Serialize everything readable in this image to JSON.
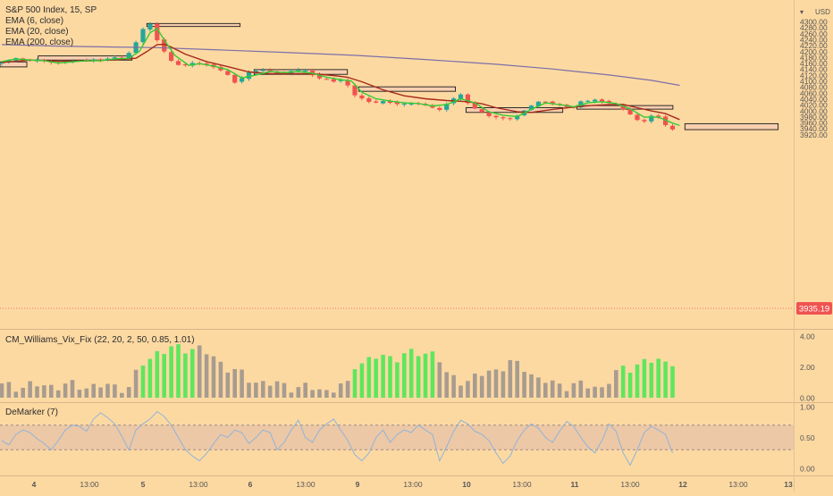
{
  "chart": {
    "title": "S&P 500 Index, 15, SP",
    "currency": "USD",
    "current_price": "3935.19",
    "ema_labels": [
      "EMA (6, close)",
      "EMA (20, close)",
      "EMA (200, close)"
    ],
    "vix_label": "CM_Williams_Vix_Fix (22, 20, 2, 50, 0.85, 1.01)",
    "demarker_label": "DeMarker (7)"
  },
  "colors": {
    "background": "#fdd9a2",
    "candle_up": "#26a69a",
    "candle_down": "#ef5350",
    "ema6": "#33cc33",
    "ema20": "#a52a1a",
    "ema200": "#7b6fa8",
    "vix_high": "#5ee65e",
    "vix_normal": "#a89c90",
    "demarker_line": "#8fb4d9",
    "demarker_band": "#e8c3a8",
    "zone_fill": "#f8cdb3"
  },
  "chart_data": [
    {
      "type": "candlestick",
      "panel": "price",
      "title": "S&P 500 Index, 15, SP",
      "y_ticks": [
        3920,
        3940,
        3960,
        3980,
        4000,
        4020,
        4040,
        4060,
        4080,
        4100,
        4120,
        4140,
        4160,
        4180,
        4200,
        4220,
        4240,
        4260,
        4280,
        4300
      ],
      "y_tick_labels": [
        "3920.00",
        "3940.00",
        "3960.00",
        "3980.00",
        "4000.00",
        "4020.00",
        "4040.00",
        "4060.00",
        "4080.00",
        "4100.00",
        "4120.00",
        "4140.00",
        "4160.00",
        "4180.00",
        "4200.00",
        "4220.00",
        "4240.00",
        "4260.00",
        "4280.00",
        "4300.00"
      ],
      "ylim": [
        3908,
        4313
      ],
      "x_ticks": [
        "4",
        "13:00",
        "5",
        "13:00",
        "6",
        "13:00",
        "9",
        "13:00",
        "10",
        "13:00",
        "11",
        "13:00",
        "12",
        "13:00",
        "13"
      ],
      "series_labels": [
        "EMA (6, close)",
        "EMA (20, close)",
        "EMA (200, close)"
      ],
      "close_path": [
        [
          0,
          4158
        ],
        [
          2,
          4176
        ],
        [
          4,
          4168
        ],
        [
          6,
          4171
        ],
        [
          8,
          4159
        ],
        [
          10,
          4166
        ],
        [
          12,
          4171
        ],
        [
          14,
          4169
        ],
        [
          16,
          4178
        ],
        [
          18,
          4176
        ],
        [
          19.5,
          4230
        ],
        [
          20.5,
          4275
        ],
        [
          21.5,
          4290
        ],
        [
          22,
          4300
        ],
        [
          22.6,
          4226
        ],
        [
          23.5,
          4200
        ],
        [
          24.5,
          4165
        ],
        [
          26,
          4150
        ],
        [
          28,
          4162
        ],
        [
          30,
          4152
        ],
        [
          31.5,
          4136
        ],
        [
          32.5,
          4118
        ],
        [
          33.5,
          4096
        ],
        [
          34.5,
          4110
        ],
        [
          35.5,
          4126
        ],
        [
          37,
          4140
        ],
        [
          39,
          4128
        ],
        [
          40.5,
          4123
        ],
        [
          42,
          4140
        ],
        [
          44,
          4130
        ],
        [
          45,
          4112
        ],
        [
          46.5,
          4104
        ],
        [
          48,
          4096
        ],
        [
          49,
          4110
        ],
        [
          50,
          4058
        ],
        [
          51.5,
          4040
        ],
        [
          53,
          4026
        ],
        [
          55,
          4031
        ],
        [
          57,
          4020
        ],
        [
          59,
          4026
        ],
        [
          61,
          4015
        ],
        [
          62.5,
          4001
        ],
        [
          64,
          4036
        ],
        [
          65.5,
          4052
        ],
        [
          67,
          4015
        ],
        [
          69,
          3985
        ],
        [
          71,
          3975
        ],
        [
          72.5,
          3973
        ],
        [
          73.5,
          3982
        ],
        [
          75,
          4012
        ],
        [
          77,
          4033
        ],
        [
          79,
          4022
        ],
        [
          80.5,
          4013
        ],
        [
          81.5,
          4010
        ],
        [
          82,
          4031
        ],
        [
          83.5,
          4033
        ],
        [
          85,
          4036
        ],
        [
          87,
          4022
        ],
        [
          88.5,
          4006
        ],
        [
          90,
          3978
        ],
        [
          91,
          3957
        ],
        [
          92,
          3972
        ],
        [
          93,
          3992
        ],
        [
          94,
          3968
        ],
        [
          94.8,
          3941
        ],
        [
          95.5,
          3935
        ]
      ],
      "ema6": [
        [
          0,
          4165
        ],
        [
          2,
          4174
        ],
        [
          4,
          4170
        ],
        [
          6,
          4168
        ],
        [
          8,
          4160
        ],
        [
          10,
          4164
        ],
        [
          12,
          4168
        ],
        [
          14,
          4168
        ],
        [
          16,
          4174
        ],
        [
          18,
          4176
        ],
        [
          19.5,
          4200
        ],
        [
          21,
          4262
        ],
        [
          22,
          4276
        ],
        [
          23,
          4238
        ],
        [
          24.5,
          4186
        ],
        [
          26.5,
          4152
        ],
        [
          28,
          4158
        ],
        [
          30,
          4150
        ],
        [
          32,
          4138
        ],
        [
          34,
          4110
        ],
        [
          36,
          4120
        ],
        [
          38,
          4132
        ],
        [
          40,
          4128
        ],
        [
          42,
          4132
        ],
        [
          44,
          4126
        ],
        [
          46,
          4112
        ],
        [
          48,
          4104
        ],
        [
          49.5,
          4100
        ],
        [
          51,
          4062
        ],
        [
          53,
          4040
        ],
        [
          55,
          4032
        ],
        [
          57,
          4026
        ],
        [
          59,
          4024
        ],
        [
          61,
          4016
        ],
        [
          63,
          4020
        ],
        [
          65,
          4040
        ],
        [
          67,
          4026
        ],
        [
          69,
          3996
        ],
        [
          71,
          3984
        ],
        [
          73,
          3980
        ],
        [
          75,
          4004
        ],
        [
          77,
          4026
        ],
        [
          79,
          4020
        ],
        [
          81,
          4013
        ],
        [
          83,
          4026
        ],
        [
          85,
          4030
        ],
        [
          87,
          4024
        ],
        [
          89,
          4006
        ],
        [
          91,
          3978
        ],
        [
          93,
          3978
        ],
        [
          95,
          3958
        ],
        [
          96,
          3950
        ]
      ],
      "ema20": [
        [
          0,
          4162
        ],
        [
          4,
          4170
        ],
        [
          8,
          4166
        ],
        [
          12,
          4167
        ],
        [
          16,
          4171
        ],
        [
          19,
          4176
        ],
        [
          20.5,
          4198
        ],
        [
          22,
          4222
        ],
        [
          23,
          4223
        ],
        [
          24,
          4214
        ],
        [
          26,
          4190
        ],
        [
          29,
          4165
        ],
        [
          32,
          4148
        ],
        [
          35,
          4130
        ],
        [
          38,
          4124
        ],
        [
          41,
          4124
        ],
        [
          44,
          4124
        ],
        [
          47,
          4118
        ],
        [
          49,
          4112
        ],
        [
          51,
          4097
        ],
        [
          54,
          4070
        ],
        [
          57,
          4050
        ],
        [
          60,
          4040
        ],
        [
          63,
          4034
        ],
        [
          66,
          4030
        ],
        [
          68,
          4023
        ],
        [
          70,
          4010
        ],
        [
          73,
          3996
        ],
        [
          75,
          3994
        ],
        [
          78,
          4004
        ],
        [
          81,
          4012
        ],
        [
          83.5,
          4017
        ],
        [
          86,
          4020
        ],
        [
          88,
          4021
        ],
        [
          90,
          4010
        ],
        [
          92,
          3999
        ],
        [
          94,
          3990
        ],
        [
          96,
          3970
        ]
      ],
      "ema200": [
        [
          0,
          4222
        ],
        [
          8,
          4217
        ],
        [
          16,
          4214
        ],
        [
          22,
          4212
        ],
        [
          30,
          4205
        ],
        [
          40,
          4196
        ],
        [
          50,
          4186
        ],
        [
          60,
          4172
        ],
        [
          70,
          4156
        ],
        [
          78,
          4140
        ],
        [
          86,
          4120
        ],
        [
          92,
          4102
        ],
        [
          96,
          4085
        ]
      ],
      "zones": [
        {
          "x0": 0,
          "x1": 3.8,
          "y0": 4147,
          "y1": 4164
        },
        {
          "x0": 5.4,
          "x1": 18.7,
          "y0": 4170,
          "y1": 4184
        },
        {
          "x0": 20.8,
          "x1": 34,
          "y0": 4283,
          "y1": 4293
        },
        {
          "x0": 36,
          "x1": 49.2,
          "y0": 4122,
          "y1": 4138
        },
        {
          "x0": 50.8,
          "x1": 64.5,
          "y0": 4065,
          "y1": 4080
        },
        {
          "x0": 66,
          "x1": 79.7,
          "y0": 3994,
          "y1": 4010
        },
        {
          "x0": 81.7,
          "x1": 95.3,
          "y0": 4005,
          "y1": 4017
        },
        {
          "x0": 97,
          "x1": 110.2,
          "y0": 3936,
          "y1": 3956
        }
      ]
    },
    {
      "type": "bar",
      "panel": "vix",
      "title": "CM_Williams_Vix_Fix (22, 20, 2, 50, 0.85, 1.01)",
      "y_ticks": [
        0,
        2,
        4
      ],
      "y_tick_labels": [
        "0.00",
        "2.00",
        "4.00"
      ],
      "ylim": [
        0,
        4.2
      ],
      "high_ranges": [
        [
          20,
          27.5
        ],
        [
          50,
          61.5
        ],
        [
          88,
          95.5
        ]
      ],
      "profile": [
        [
          0,
          0.75
        ],
        [
          8,
          0.8
        ],
        [
          14,
          0.75
        ],
        [
          18,
          0.7
        ],
        [
          20,
          2.2
        ],
        [
          22,
          3.0
        ],
        [
          25,
          3.2
        ],
        [
          27.5,
          3.3
        ],
        [
          30,
          2.6
        ],
        [
          32,
          2.0
        ],
        [
          35,
          1.2
        ],
        [
          38,
          0.9
        ],
        [
          42,
          0.7
        ],
        [
          46,
          0.5
        ],
        [
          49,
          0.8
        ],
        [
          50,
          2.2
        ],
        [
          53,
          2.6
        ],
        [
          56,
          2.7
        ],
        [
          59,
          2.9
        ],
        [
          61.5,
          3.0
        ],
        [
          63,
          1.4
        ],
        [
          66,
          1.1
        ],
        [
          69,
          1.7
        ],
        [
          72,
          2.2
        ],
        [
          74,
          2.0
        ],
        [
          76,
          1.2
        ],
        [
          78,
          0.9
        ],
        [
          82,
          0.8
        ],
        [
          85,
          0.7
        ],
        [
          88,
          1.9
        ],
        [
          91,
          2.3
        ],
        [
          93,
          2.4
        ],
        [
          95.5,
          2.4
        ]
      ]
    },
    {
      "type": "line",
      "panel": "demarker",
      "title": "DeMarker (7)",
      "y_ticks": [
        0,
        0.5,
        1
      ],
      "y_tick_labels": [
        "0.00",
        "0.50",
        "1.00"
      ],
      "ylim": [
        -0.05,
        1.08
      ],
      "band": [
        0.3,
        0.7
      ],
      "values": [
        0.45,
        0.38,
        0.55,
        0.62,
        0.58,
        0.48,
        0.4,
        0.3,
        0.45,
        0.62,
        0.7,
        0.68,
        0.6,
        0.8,
        0.9,
        0.82,
        0.72,
        0.52,
        0.3,
        0.62,
        0.72,
        0.8,
        0.92,
        0.84,
        0.7,
        0.5,
        0.3,
        0.2,
        0.12,
        0.24,
        0.4,
        0.55,
        0.5,
        0.62,
        0.58,
        0.4,
        0.5,
        0.62,
        0.58,
        0.3,
        0.42,
        0.62,
        0.78,
        0.5,
        0.42,
        0.62,
        0.72,
        0.8,
        0.62,
        0.45,
        0.22,
        0.12,
        0.25,
        0.5,
        0.62,
        0.42,
        0.55,
        0.62,
        0.58,
        0.7,
        0.62,
        0.55,
        0.12,
        0.35,
        0.6,
        0.78,
        0.72,
        0.6,
        0.55,
        0.45,
        0.25,
        0.08,
        0.2,
        0.45,
        0.62,
        0.72,
        0.65,
        0.5,
        0.42,
        0.6,
        0.76,
        0.68,
        0.5,
        0.35,
        0.25,
        0.45,
        0.72,
        0.6,
        0.25,
        0.05,
        0.3,
        0.58,
        0.68,
        0.62,
        0.55,
        0.25
      ]
    }
  ]
}
